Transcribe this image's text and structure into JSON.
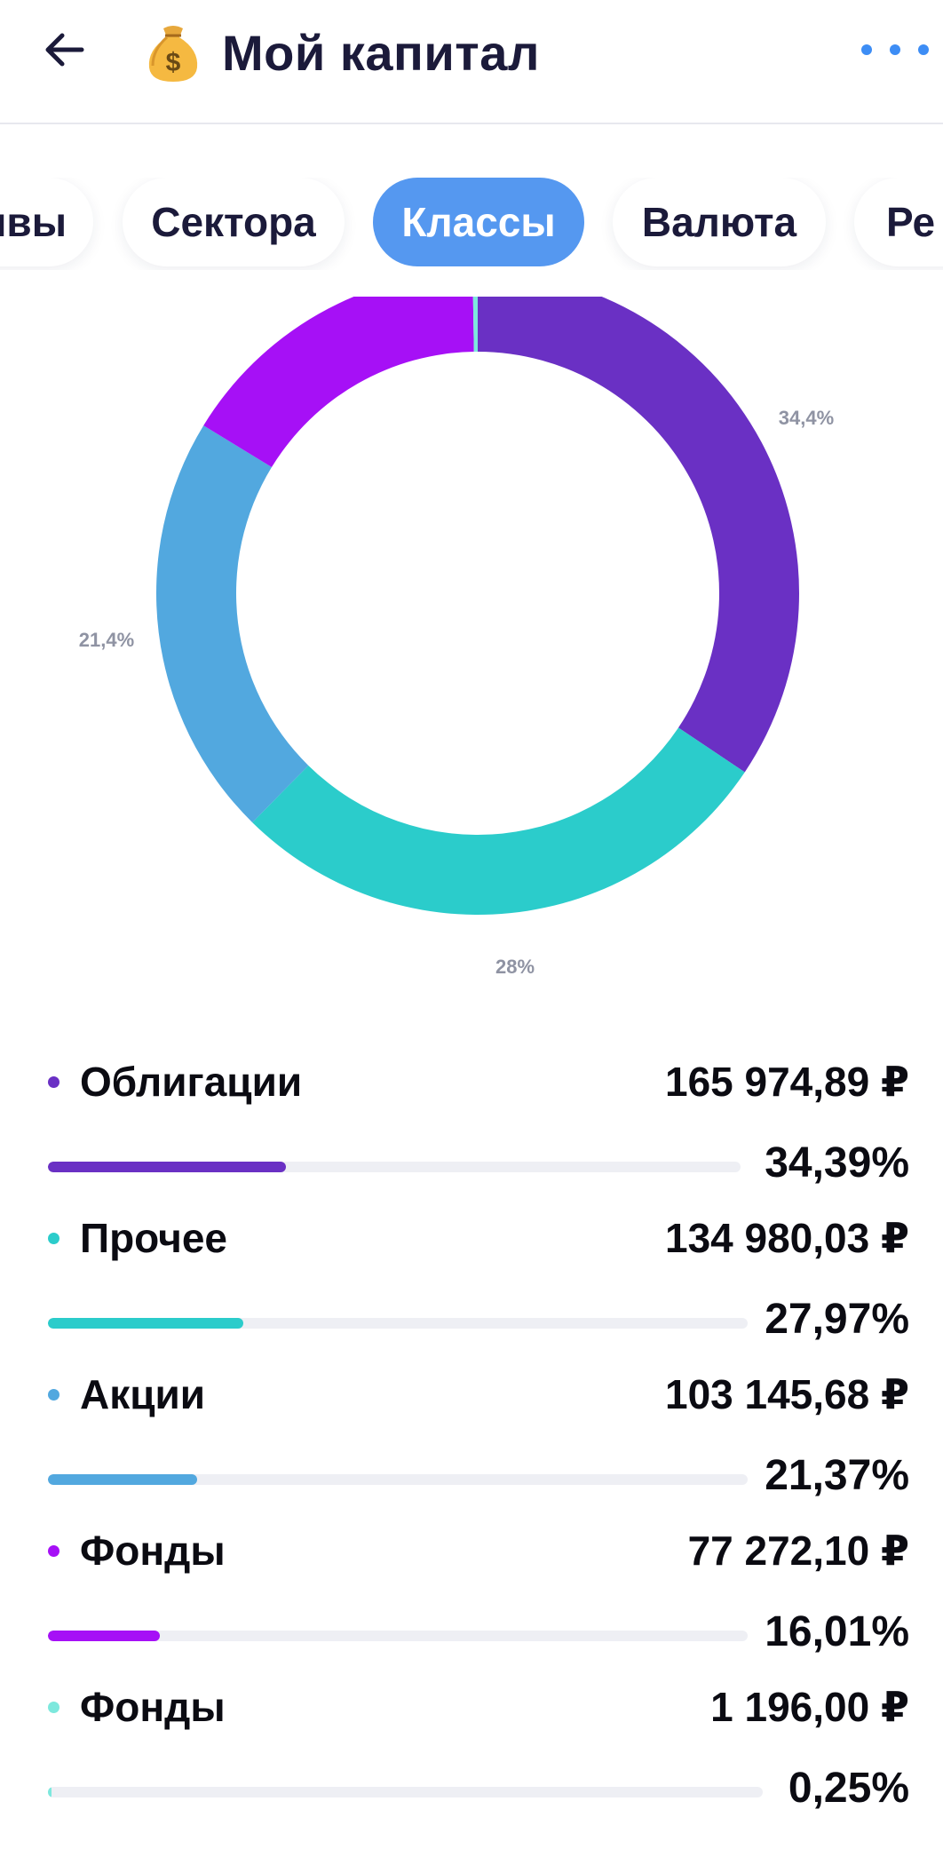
{
  "header": {
    "title": "Мой капитал",
    "back_icon": "arrow-left-icon",
    "bag_icon": "money-bag-icon",
    "more_icon": "more-horizontal-icon",
    "accent": "#3d8df5"
  },
  "tabs": [
    {
      "label": "Активы",
      "visible_label": "ивы",
      "active": false
    },
    {
      "label": "Сектора",
      "active": false
    },
    {
      "label": "Классы",
      "active": true
    },
    {
      "label": "Валюта",
      "active": false
    },
    {
      "label": "Ре",
      "visible_label": "Ре",
      "active": false
    }
  ],
  "chart_data": {
    "type": "pie",
    "donut": true,
    "labels": [
      "Облигации",
      "Прочее",
      "Акции",
      "Фонды",
      "Фонды"
    ],
    "values": [
      34.39,
      27.97,
      21.37,
      16.01,
      0.25
    ],
    "colors": [
      "#6a30c4",
      "#2bcccb",
      "#52a8df",
      "#a610f6",
      "#7de8dd"
    ],
    "slice_labels": [
      "34,4%",
      "28%",
      "21,4%",
      "",
      ""
    ],
    "start_angle_deg": 0,
    "direction": "clockwise"
  },
  "items": [
    {
      "name": "Облигации",
      "amount": "165 974,89 ₽",
      "percent": "34,39%",
      "share": 0.3439,
      "color": "#6a30c4"
    },
    {
      "name": "Прочее",
      "amount": "134 980,03 ₽",
      "percent": "27,97%",
      "share": 0.2797,
      "color": "#2bcccb"
    },
    {
      "name": "Акции",
      "amount": "103 145,68 ₽",
      "percent": "21,37%",
      "share": 0.2137,
      "color": "#52a8df"
    },
    {
      "name": "Фонды",
      "amount": "77 272,10 ₽",
      "percent": "16,01%",
      "share": 0.1601,
      "color": "#a610f6"
    },
    {
      "name": "Фонды",
      "amount": "1 196,00 ₽",
      "percent": "0,25%",
      "share": 0.0025,
      "color": "#7de8dd"
    }
  ]
}
